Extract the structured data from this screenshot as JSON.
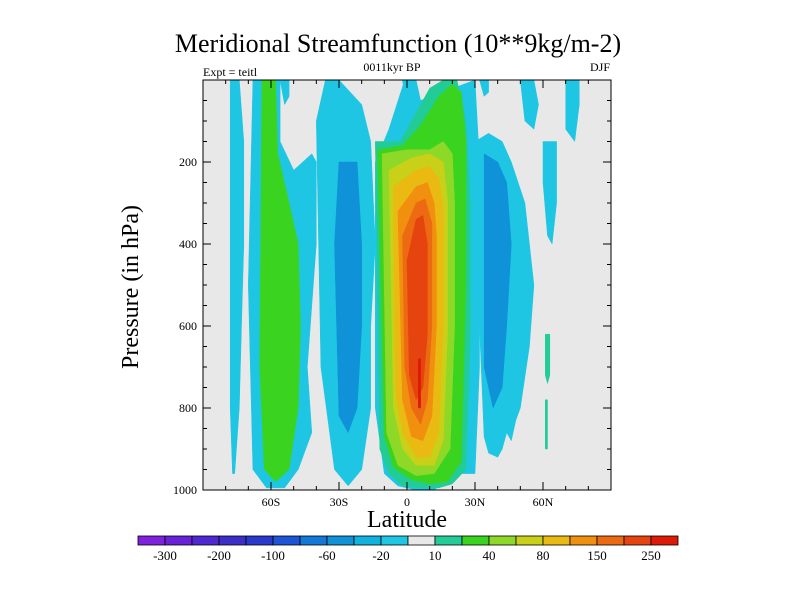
{
  "chart_data": {
    "type": "contour",
    "title": "Meridional Streamfunction (10**9kg/m-2)",
    "subtitle_left": "Expt = teitl",
    "subtitle_center": "0011kyr BP",
    "subtitle_right": "DJF",
    "xlabel": "Latitude",
    "ylabel": "Pressure (in hPa)",
    "xlim": [
      -90,
      90
    ],
    "ylim": [
      1000,
      0
    ],
    "x_ticks": [
      {
        "value": -60,
        "label": "60S"
      },
      {
        "value": -30,
        "label": "30S"
      },
      {
        "value": 0,
        "label": "0"
      },
      {
        "value": 30,
        "label": "30N"
      },
      {
        "value": 60,
        "label": "60N"
      }
    ],
    "y_ticks": [
      {
        "value": 200,
        "label": "200"
      },
      {
        "value": 400,
        "label": "400"
      },
      {
        "value": 600,
        "label": "600"
      },
      {
        "value": 800,
        "label": "800"
      },
      {
        "value": 1000,
        "label": "1000"
      }
    ],
    "levels": [
      {
        "label": "-300",
        "color": "#7f22e0"
      },
      {
        "label": "",
        "color": "#6a22d8"
      },
      {
        "label": "-200",
        "color": "#5028d2"
      },
      {
        "label": "",
        "color": "#3c2ec8"
      },
      {
        "label": "-100",
        "color": "#2a38cc"
      },
      {
        "label": "",
        "color": "#1e55d8"
      },
      {
        "label": "-60",
        "color": "#1478d6"
      },
      {
        "label": "",
        "color": "#1092d8"
      },
      {
        "label": "-20",
        "color": "#12b2e0"
      },
      {
        "label": "",
        "color": "#1ec6e4"
      },
      {
        "label": "10",
        "color": "#e8e8e8"
      },
      {
        "label": "",
        "color": "#22cc96"
      },
      {
        "label": "40",
        "color": "#3ad420"
      },
      {
        "label": "",
        "color": "#8ed828"
      },
      {
        "label": "80",
        "color": "#c8d018"
      },
      {
        "label": "",
        "color": "#eaba12"
      },
      {
        "label": "150",
        "color": "#f0900e"
      },
      {
        "label": "",
        "color": "#ec6a12"
      },
      {
        "label": "250",
        "color": "#e6440e"
      },
      {
        "label": "",
        "color": "#dd1a08"
      }
    ],
    "contour_regions": [
      {
        "series": "sh-outer-cell",
        "level_color": "#1ec6e4",
        "lat": [
          -78,
          -74,
          -72,
          -72,
          -73,
          -74,
          -76,
          -77,
          -78,
          -78
        ],
        "p": [
          0,
          0,
          150,
          400,
          600,
          800,
          960,
          960,
          800,
          0
        ]
      },
      {
        "series": "sh-midlat-cell",
        "level_color": "#1ec6e4",
        "lat": [
          -68,
          -56,
          -56,
          -50,
          -42,
          -40,
          -40,
          -44,
          -42,
          -48,
          -54,
          -62,
          -68,
          -70,
          -68
        ],
        "p": [
          0,
          0,
          150,
          220,
          180,
          200,
          400,
          700,
          860,
          950,
          995,
          995,
          950,
          500,
          0
        ]
      },
      {
        "series": "sh-midlat-cell",
        "level_color": "#3ad420",
        "lat": [
          -64,
          -58,
          -57,
          -52,
          -48,
          -47,
          -48,
          -52,
          -58,
          -63,
          -65,
          -64
        ],
        "p": [
          0,
          0,
          180,
          300,
          400,
          600,
          800,
          950,
          980,
          950,
          700,
          0
        ]
      },
      {
        "series": "sh-subtropical-cell",
        "level_color": "#1ec6e4",
        "lat": [
          -40,
          -36,
          -30,
          -20,
          -16,
          -14,
          -16,
          -16,
          -20,
          -26,
          -32,
          -38,
          -40
        ],
        "p": [
          100,
          0,
          0,
          60,
          150,
          400,
          600,
          800,
          950,
          990,
          950,
          700,
          100
        ]
      },
      {
        "series": "sh-subtropical-cell",
        "level_color": "#1092d8",
        "lat": [
          -30,
          -22,
          -20,
          -20,
          -22,
          -26,
          -30,
          -32,
          -30
        ],
        "p": [
          200,
          200,
          400,
          600,
          800,
          860,
          820,
          400,
          200
        ]
      },
      {
        "series": "hadley-cell",
        "level_color": "#1ec6e4",
        "lat": [
          -1,
          4,
          6,
          30,
          32,
          32,
          30,
          22,
          18,
          12,
          4,
          -4,
          -10,
          -14,
          -14,
          -8,
          -1
        ],
        "p": [
          0,
          0,
          50,
          0,
          200,
          700,
          960,
          960,
          975,
          1000,
          1000,
          990,
          960,
          800,
          200,
          120,
          0
        ]
      },
      {
        "series": "hadley-cell",
        "level_color": "#22cc96",
        "lat": [
          -14,
          -3,
          4,
          10,
          16,
          22,
          26,
          28,
          28,
          26,
          20,
          14,
          6,
          -2,
          -8,
          -12,
          -14
        ],
        "p": [
          150,
          150,
          80,
          20,
          0,
          0,
          100,
          300,
          600,
          950,
          985,
          995,
          995,
          990,
          960,
          900,
          150
        ]
      },
      {
        "series": "hadley-cell",
        "level_color": "#3ad420",
        "lat": [
          -13,
          -2,
          6,
          14,
          20,
          24,
          26,
          26,
          24,
          18,
          10,
          2,
          -6,
          -10,
          -13
        ],
        "p": [
          170,
          160,
          110,
          40,
          10,
          30,
          150,
          500,
          930,
          980,
          985,
          975,
          945,
          870,
          170
        ]
      },
      {
        "series": "hadley-cell",
        "level_color": "#8ed828",
        "lat": [
          -11,
          0,
          10,
          16,
          20,
          21,
          21,
          19,
          12,
          4,
          -4,
          -9,
          -11
        ],
        "p": [
          180,
          170,
          170,
          150,
          180,
          300,
          600,
          900,
          960,
          965,
          940,
          860,
          180
        ]
      },
      {
        "series": "hadley-cell",
        "level_color": "#c8d018",
        "lat": [
          -8,
          2,
          10,
          16,
          18,
          18,
          16,
          12,
          4,
          -2,
          -6,
          -8
        ],
        "p": [
          220,
          190,
          180,
          200,
          300,
          600,
          880,
          940,
          940,
          900,
          800,
          220
        ]
      },
      {
        "series": "hadley-cell",
        "level_color": "#eaba12",
        "lat": [
          -6,
          4,
          10,
          14,
          16,
          16,
          14,
          10,
          4,
          -2,
          -5,
          -6
        ],
        "p": [
          260,
          220,
          210,
          240,
          320,
          600,
          860,
          920,
          920,
          860,
          760,
          260
        ]
      },
      {
        "series": "hadley-cell",
        "level_color": "#f0900e",
        "lat": [
          -4,
          4,
          9,
          12,
          13,
          13,
          11,
          7,
          2,
          -2,
          -4
        ],
        "p": [
          320,
          260,
          250,
          300,
          380,
          600,
          820,
          880,
          870,
          780,
          320
        ]
      },
      {
        "series": "hadley-cell",
        "level_color": "#ec6a12",
        "lat": [
          -2,
          4,
          8,
          11,
          11,
          9,
          6,
          2,
          -1,
          -2
        ],
        "p": [
          380,
          300,
          290,
          350,
          600,
          780,
          840,
          800,
          700,
          380
        ]
      },
      {
        "series": "hadley-cell",
        "level_color": "#e6440e",
        "lat": [
          0,
          4,
          7,
          9,
          9,
          7,
          4,
          1,
          0
        ],
        "p": [
          440,
          340,
          330,
          400,
          620,
          750,
          780,
          720,
          440
        ]
      },
      {
        "series": "hadley-cell",
        "level_color": "#dd1a08",
        "lat": [
          5,
          6,
          6,
          5
        ],
        "p": [
          680,
          680,
          800,
          800
        ]
      },
      {
        "series": "nh-ferrel-cell",
        "level_color": "#1ec6e4",
        "lat": [
          30,
          36,
          42,
          46,
          52,
          54,
          56,
          54,
          50,
          48,
          46,
          44,
          42,
          40,
          36,
          34,
          32,
          30
        ],
        "p": [
          150,
          130,
          150,
          200,
          300,
          400,
          500,
          650,
          800,
          830,
          880,
          860,
          900,
          920,
          910,
          870,
          600,
          150
        ]
      },
      {
        "series": "nh-ferrel-cell",
        "level_color": "#1092d8",
        "lat": [
          34,
          40,
          44,
          46,
          44,
          42,
          38,
          34,
          34
        ],
        "p": [
          180,
          200,
          250,
          400,
          600,
          750,
          800,
          700,
          180
        ]
      },
      {
        "series": "nh-high-lat",
        "level_color": "#1ec6e4",
        "lat": [
          60,
          66,
          66,
          64,
          62,
          60,
          60
        ],
        "p": [
          150,
          150,
          300,
          400,
          380,
          250,
          150
        ]
      },
      {
        "series": "nh-high-lat",
        "level_color": "#22cc96",
        "lat": [
          61,
          63,
          63,
          62,
          61,
          61
        ],
        "p": [
          620,
          620,
          720,
          740,
          720,
          620
        ]
      },
      {
        "series": "nh-high-lat",
        "level_color": "#22cc96",
        "lat": [
          61,
          62,
          62,
          61,
          61
        ],
        "p": [
          780,
          780,
          900,
          900,
          780
        ]
      },
      {
        "series": "top-cells",
        "level_color": "#1ec6e4",
        "lat": [
          -2,
          0,
          2,
          1,
          -1,
          -2
        ],
        "p": [
          0,
          0,
          20,
          60,
          40,
          0
        ]
      },
      {
        "series": "top-cells",
        "level_color": "#1ec6e4",
        "lat": [
          32,
          36,
          36,
          34,
          32
        ],
        "p": [
          0,
          0,
          30,
          40,
          0
        ]
      },
      {
        "series": "top-cells",
        "level_color": "#1ec6e4",
        "lat": [
          50,
          56,
          58,
          56,
          52,
          50
        ],
        "p": [
          0,
          0,
          60,
          120,
          100,
          0
        ]
      },
      {
        "series": "top-cells",
        "level_color": "#1ec6e4",
        "lat": [
          70,
          76,
          76,
          74,
          70,
          70
        ],
        "p": [
          0,
          0,
          60,
          150,
          120,
          0
        ]
      },
      {
        "series": "top-cells",
        "level_color": "#1ec6e4",
        "lat": [
          -56,
          -52,
          -52,
          -54,
          -56
        ],
        "p": [
          0,
          0,
          40,
          60,
          0
        ]
      }
    ]
  }
}
